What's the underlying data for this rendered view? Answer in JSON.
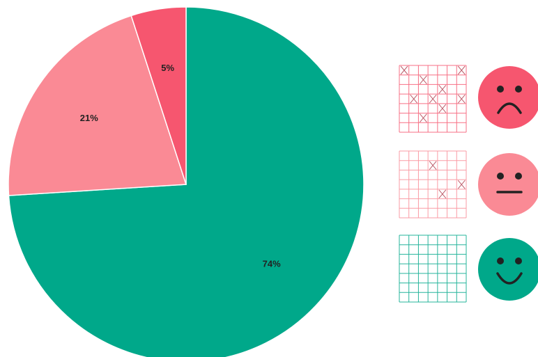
{
  "chart_data": {
    "type": "pie",
    "categories": [
      null,
      null,
      null
    ],
    "values": [
      74,
      21,
      5
    ],
    "value_labels": [
      "74%",
      "21%",
      "5%"
    ],
    "colors": [
      "#00a88a",
      "#fa8a95",
      "#f6566f"
    ],
    "start_angle": 0,
    "direction": "clockwise"
  }
}
